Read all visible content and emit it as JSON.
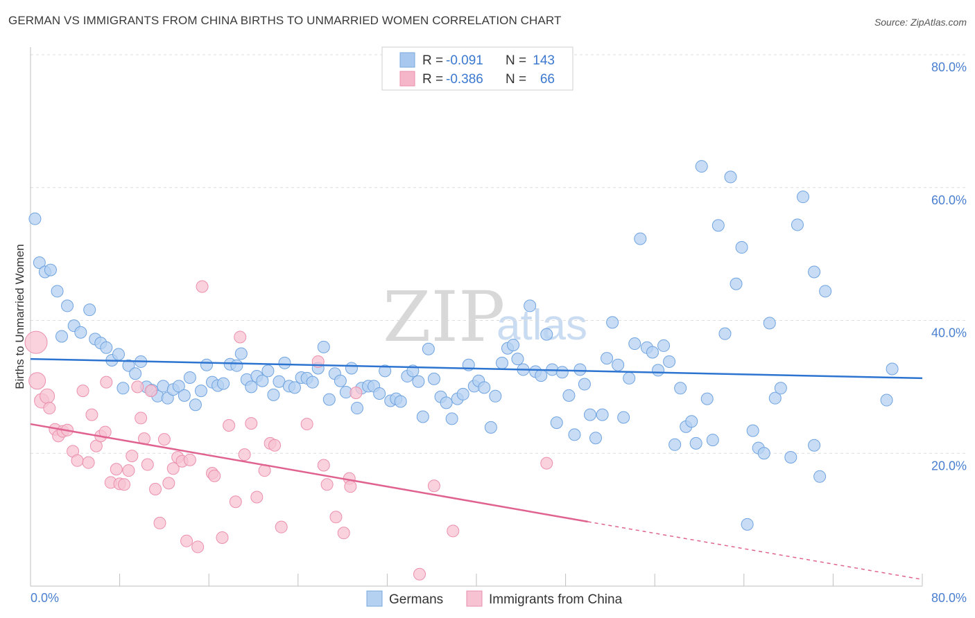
{
  "header": {
    "title": "GERMAN VS IMMIGRANTS FROM CHINA BIRTHS TO UNMARRIED WOMEN CORRELATION CHART",
    "source": "Source: ZipAtlas.com"
  },
  "watermark": {
    "zip": "ZIP",
    "atlas": "atlas"
  },
  "legend_top": [
    {
      "r_label": "R =",
      "r_value": "-0.091",
      "n_label": "N =",
      "n_value": "143",
      "color": "#a9c8ef"
    },
    {
      "r_label": "R =",
      "r_value": "-0.386",
      "n_label": "N =",
      "n_value": "66",
      "color": "#f4b6c8"
    }
  ],
  "chart_data": {
    "type": "scatter",
    "title": "GERMAN VS IMMIGRANTS FROM CHINA BIRTHS TO UNMARRIED WOMEN CORRELATION CHART",
    "xlabel": "",
    "ylabel": "Births to Unmarried Women",
    "xlim": [
      0,
      80
    ],
    "ylim": [
      0,
      80
    ],
    "x_tick_labels": [
      "0.0%",
      "80.0%"
    ],
    "y_tick_labels": [
      "20.0%",
      "40.0%",
      "60.0%",
      "80.0%"
    ],
    "y_ticks": [
      20,
      40,
      60,
      80
    ],
    "grid": true,
    "legend_position": "bottom-center",
    "series": [
      {
        "name": "Germans",
        "color": "#6fa3e0",
        "fill": "#b5d1f2",
        "trend": {
          "x0": 0,
          "y0": 34.2,
          "x1": 80,
          "y1": 31.3,
          "color": "#2d74d1"
        },
        "points": [
          [
            0.4,
            55.3
          ],
          [
            0.8,
            48.7
          ],
          [
            1.3,
            47.3
          ],
          [
            1.8,
            47.6
          ],
          [
            2.4,
            44.4
          ],
          [
            2.8,
            37.6
          ],
          [
            3.3,
            42.2
          ],
          [
            3.9,
            39.2
          ],
          [
            4.5,
            38.2
          ],
          [
            5.3,
            41.6
          ],
          [
            5.8,
            37.2
          ],
          [
            6.3,
            36.6
          ],
          [
            6.8,
            35.9
          ],
          [
            7.3,
            34.0
          ],
          [
            7.9,
            34.9
          ],
          [
            8.3,
            29.8
          ],
          [
            8.8,
            33.2
          ],
          [
            9.4,
            32.0
          ],
          [
            9.9,
            33.8
          ],
          [
            10.4,
            30.0
          ],
          [
            10.9,
            29.5
          ],
          [
            11.4,
            28.6
          ],
          [
            11.9,
            30.1
          ],
          [
            12.3,
            28.3
          ],
          [
            12.8,
            29.6
          ],
          [
            13.3,
            30.1
          ],
          [
            13.8,
            28.7
          ],
          [
            14.3,
            31.4
          ],
          [
            14.8,
            27.3
          ],
          [
            15.3,
            29.4
          ],
          [
            15.8,
            33.3
          ],
          [
            16.3,
            30.7
          ],
          [
            16.8,
            30.2
          ],
          [
            17.3,
            30.5
          ],
          [
            17.9,
            33.4
          ],
          [
            18.5,
            33.2
          ],
          [
            18.9,
            35.0
          ],
          [
            19.4,
            31.1
          ],
          [
            19.8,
            30.0
          ],
          [
            20.3,
            31.6
          ],
          [
            20.8,
            30.9
          ],
          [
            21.3,
            32.4
          ],
          [
            21.8,
            28.8
          ],
          [
            22.3,
            30.8
          ],
          [
            22.8,
            33.6
          ],
          [
            23.2,
            30.1
          ],
          [
            23.7,
            29.9
          ],
          [
            24.3,
            31.4
          ],
          [
            24.8,
            31.3
          ],
          [
            25.3,
            30.7
          ],
          [
            25.8,
            32.8
          ],
          [
            26.3,
            36.0
          ],
          [
            26.8,
            28.1
          ],
          [
            27.3,
            32.0
          ],
          [
            27.8,
            30.9
          ],
          [
            28.3,
            29.2
          ],
          [
            28.8,
            32.8
          ],
          [
            29.3,
            26.8
          ],
          [
            29.7,
            29.8
          ],
          [
            30.3,
            30.1
          ],
          [
            30.8,
            30.1
          ],
          [
            31.3,
            29.0
          ],
          [
            31.8,
            32.4
          ],
          [
            32.3,
            27.9
          ],
          [
            32.8,
            28.2
          ],
          [
            33.2,
            27.8
          ],
          [
            33.8,
            31.6
          ],
          [
            34.3,
            32.4
          ],
          [
            34.8,
            30.8
          ],
          [
            35.2,
            25.5
          ],
          [
            35.7,
            35.7
          ],
          [
            36.2,
            31.2
          ],
          [
            36.8,
            28.5
          ],
          [
            37.3,
            27.6
          ],
          [
            37.8,
            25.2
          ],
          [
            38.3,
            28.2
          ],
          [
            38.8,
            28.9
          ],
          [
            39.3,
            33.3
          ],
          [
            39.8,
            30.1
          ],
          [
            40.2,
            30.9
          ],
          [
            40.7,
            29.9
          ],
          [
            41.3,
            23.9
          ],
          [
            41.7,
            28.6
          ],
          [
            42.3,
            33.6
          ],
          [
            42.8,
            35.8
          ],
          [
            43.3,
            36.3
          ],
          [
            43.7,
            34.2
          ],
          [
            44.2,
            32.6
          ],
          [
            44.8,
            42.2
          ],
          [
            45.3,
            32.3
          ],
          [
            45.8,
            31.7
          ],
          [
            46.3,
            37.9
          ],
          [
            46.8,
            32.6
          ],
          [
            47.2,
            24.6
          ],
          [
            47.7,
            32.2
          ],
          [
            48.3,
            28.7
          ],
          [
            48.8,
            22.8
          ],
          [
            49.3,
            32.6
          ],
          [
            49.7,
            30.4
          ],
          [
            50.2,
            25.8
          ],
          [
            50.7,
            22.3
          ],
          [
            51.3,
            25.8
          ],
          [
            51.7,
            34.3
          ],
          [
            52.2,
            39.7
          ],
          [
            52.7,
            33.3
          ],
          [
            53.2,
            25.4
          ],
          [
            53.7,
            31.3
          ],
          [
            54.2,
            36.5
          ],
          [
            54.7,
            52.3
          ],
          [
            55.3,
            35.9
          ],
          [
            55.8,
            35.2
          ],
          [
            56.3,
            32.5
          ],
          [
            56.8,
            36.2
          ],
          [
            57.3,
            33.8
          ],
          [
            57.8,
            21.3
          ],
          [
            58.3,
            29.8
          ],
          [
            58.8,
            24.0
          ],
          [
            59.3,
            24.8
          ],
          [
            59.7,
            21.5
          ],
          [
            60.2,
            63.2
          ],
          [
            60.7,
            28.2
          ],
          [
            61.2,
            22.0
          ],
          [
            61.7,
            54.3
          ],
          [
            62.3,
            38.0
          ],
          [
            62.8,
            61.6
          ],
          [
            63.3,
            45.5
          ],
          [
            63.8,
            51.0
          ],
          [
            64.3,
            9.3
          ],
          [
            64.8,
            23.4
          ],
          [
            65.3,
            20.8
          ],
          [
            65.8,
            20.0
          ],
          [
            66.3,
            39.6
          ],
          [
            66.8,
            28.3
          ],
          [
            67.3,
            29.8
          ],
          [
            68.2,
            19.4
          ],
          [
            68.8,
            54.4
          ],
          [
            69.3,
            58.6
          ],
          [
            70.3,
            21.2
          ],
          [
            70.8,
            16.5
          ],
          [
            70.3,
            47.3
          ],
          [
            71.3,
            44.4
          ],
          [
            76.8,
            28.0
          ],
          [
            77.3,
            32.7
          ]
        ]
      },
      {
        "name": "Immigrants from China",
        "color": "#ec8fad",
        "fill": "#f7c3d3",
        "trend": {
          "x0": 0,
          "y0": 24.4,
          "x1": 50,
          "y1": 9.7,
          "color": "#e0628f"
        },
        "trend_dashed": {
          "x0": 50,
          "y0": 9.7,
          "x1": 80,
          "y1": 1.0,
          "color": "#e0628f"
        },
        "points": [
          [
            0.5,
            36.7
          ],
          [
            0.6,
            30.9
          ],
          [
            1.0,
            27.9
          ],
          [
            1.5,
            28.6
          ],
          [
            1.7,
            26.8
          ],
          [
            2.2,
            23.6
          ],
          [
            2.5,
            22.6
          ],
          [
            2.9,
            23.3
          ],
          [
            3.3,
            23.5
          ],
          [
            3.8,
            20.3
          ],
          [
            4.2,
            18.9
          ],
          [
            4.7,
            29.4
          ],
          [
            5.2,
            18.6
          ],
          [
            5.5,
            25.8
          ],
          [
            5.9,
            21.1
          ],
          [
            6.3,
            22.6
          ],
          [
            6.7,
            23.2
          ],
          [
            6.8,
            30.7
          ],
          [
            7.2,
            15.6
          ],
          [
            7.7,
            17.6
          ],
          [
            8.0,
            15.4
          ],
          [
            8.4,
            15.3
          ],
          [
            8.8,
            17.4
          ],
          [
            9.1,
            19.6
          ],
          [
            9.6,
            30.0
          ],
          [
            9.9,
            25.3
          ],
          [
            10.2,
            22.2
          ],
          [
            10.5,
            18.3
          ],
          [
            10.8,
            29.4
          ],
          [
            11.2,
            14.6
          ],
          [
            11.6,
            9.5
          ],
          [
            12.0,
            22.1
          ],
          [
            12.4,
            15.5
          ],
          [
            12.8,
            17.7
          ],
          [
            13.2,
            19.4
          ],
          [
            13.6,
            18.8
          ],
          [
            14.0,
            6.8
          ],
          [
            14.3,
            19.0
          ],
          [
            15.0,
            5.9
          ],
          [
            15.4,
            45.1
          ],
          [
            16.3,
            17.0
          ],
          [
            16.5,
            16.6
          ],
          [
            17.2,
            7.3
          ],
          [
            17.8,
            24.2
          ],
          [
            18.4,
            12.7
          ],
          [
            18.8,
            37.5
          ],
          [
            19.2,
            19.8
          ],
          [
            19.8,
            24.5
          ],
          [
            20.3,
            13.4
          ],
          [
            21.0,
            17.4
          ],
          [
            21.5,
            21.5
          ],
          [
            21.9,
            21.2
          ],
          [
            22.5,
            8.9
          ],
          [
            24.8,
            24.4
          ],
          [
            25.8,
            33.8
          ],
          [
            26.3,
            18.2
          ],
          [
            26.6,
            15.3
          ],
          [
            27.4,
            10.4
          ],
          [
            28.1,
            8.0
          ],
          [
            28.6,
            16.2
          ],
          [
            28.7,
            15.0
          ],
          [
            29.2,
            29.1
          ],
          [
            34.9,
            1.8
          ],
          [
            36.2,
            15.1
          ],
          [
            37.9,
            8.3
          ],
          [
            46.3,
            18.5
          ]
        ]
      }
    ]
  },
  "legend_bottom": [
    {
      "label": "Germans",
      "color": "#a9c8ef"
    },
    {
      "label": "Immigrants from China",
      "color": "#f4b6c8"
    }
  ]
}
